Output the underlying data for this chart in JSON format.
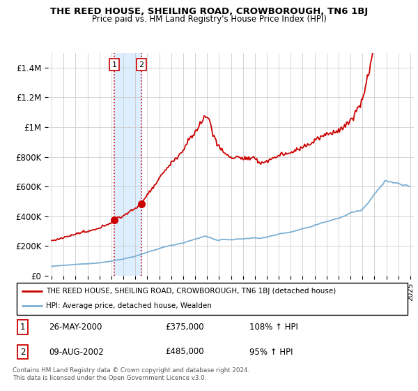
{
  "title": "THE REED HOUSE, SHEILING ROAD, CROWBOROUGH, TN6 1BJ",
  "subtitle": "Price paid vs. HM Land Registry's House Price Index (HPI)",
  "legend_line1": "THE REED HOUSE, SHEILING ROAD, CROWBOROUGH, TN6 1BJ (detached house)",
  "legend_line2": "HPI: Average price, detached house, Wealden",
  "footnote": "Contains HM Land Registry data © Crown copyright and database right 2024.\nThis data is licensed under the Open Government Licence v3.0.",
  "sale1_date": "26-MAY-2000",
  "sale1_price": 375000,
  "sale1_label": "1",
  "sale1_pct": "108% ↑ HPI",
  "sale2_date": "09-AUG-2002",
  "sale2_price": 485000,
  "sale2_label": "2",
  "sale2_pct": "95% ↑ HPI",
  "red_color": "#cc0000",
  "blue_color": "#7aafd4",
  "shade_color": "#ddeeff",
  "marker_box_color": "#cc0000",
  "ylim": [
    0,
    1500000
  ],
  "yticks": [
    0,
    200000,
    400000,
    600000,
    800000,
    1000000,
    1200000,
    1400000
  ],
  "ytick_labels": [
    "£0",
    "£200K",
    "£400K",
    "£600K",
    "£800K",
    "£1M",
    "£1.2M",
    "£1.4M"
  ],
  "background_color": "#ffffff",
  "grid_color": "#cccccc"
}
